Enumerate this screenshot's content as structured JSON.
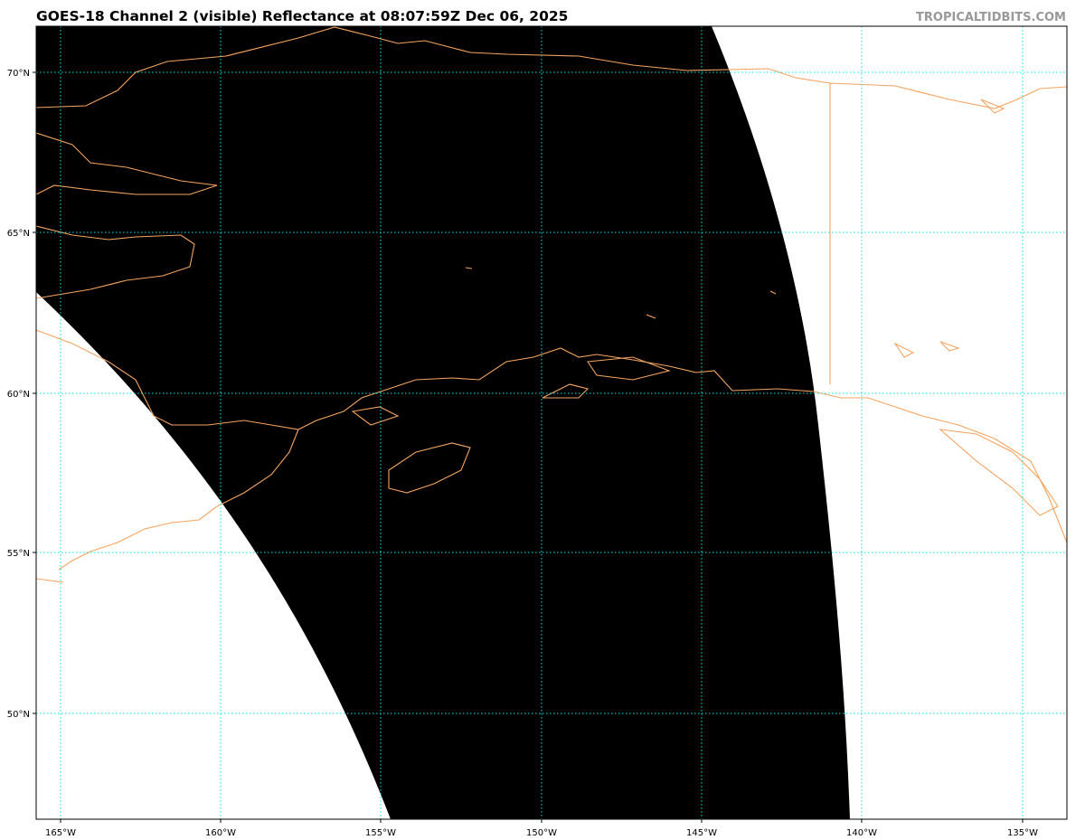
{
  "header": {
    "title": "GOES-18 Channel 2 (visible) Reflectance at 08:07:59Z Dec 06, 2025",
    "brand": "TROPICALTIDBITS.COM"
  },
  "map": {
    "lon_ticks": [
      "165°W",
      "160°W",
      "155°W",
      "150°W",
      "145°W",
      "140°W",
      "135°W"
    ],
    "lat_ticks": [
      "70°N",
      "65°N",
      "60°N",
      "55°N",
      "50°N"
    ],
    "colors": {
      "satellite_no_data": "#ffffff",
      "satellite_night": "#000000",
      "coastline": "#f4a460",
      "gridline": "#00e5e5"
    }
  }
}
